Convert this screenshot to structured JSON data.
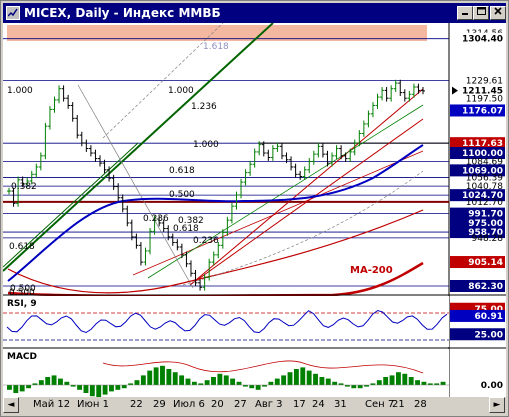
{
  "window": {
    "title": "MICEX, Daily - Индекс ММВБ",
    "icon": "chart-app-icon"
  },
  "chart_data": [
    {
      "type": "line",
      "panel": "price",
      "title": "",
      "series": [
        {
          "name": "",
          "values": [
            1032,
            1010,
            1052,
            1045,
            1050,
            1062,
            1075,
            1095,
            1148,
            1178,
            1195,
            1215,
            1198,
            1185,
            1162,
            1132,
            1118,
            1108,
            1100,
            1090,
            1082,
            1070,
            1055,
            1040,
            1020,
            1000,
            975,
            950,
            935,
            905,
            925,
            960,
            982,
            975,
            965,
            950,
            940,
            932,
            918,
            902,
            885,
            868,
            860,
            878,
            905,
            918,
            935,
            958,
            980,
            1005,
            1025,
            1048,
            1065,
            1080,
            1102,
            1115,
            1100,
            1092,
            1108,
            1112,
            1095,
            1088,
            1075,
            1062,
            1058,
            1070,
            1085,
            1098,
            1112,
            1098,
            1082,
            1095,
            1108,
            1095,
            1090,
            1102,
            1118,
            1135,
            1152,
            1170,
            1185,
            1200,
            1212,
            1198,
            1215,
            1225,
            1208,
            1198,
            1205,
            1218,
            1212,
            1211
          ]
        },
        {
          "name": "MA-200",
          "values": [
            840,
            840,
            841,
            842,
            843,
            844,
            845,
            846,
            847,
            848
          ]
        }
      ],
      "x_labels": [
        "Май 12",
        "Июн 1",
        "22",
        "29",
        "Июл 6",
        "20",
        "27",
        "Авг 3",
        "17",
        "24",
        "31",
        "Сен 7",
        "21",
        "28"
      ],
      "price_axis_labels": [
        "1314.56",
        "1304.40",
        "1229.61",
        "1211.45",
        "1197.50",
        "1176.07",
        "1117.63",
        "1100.00",
        "1084.69",
        "1069.00",
        "1056.39",
        "1040.78",
        "1024.70",
        "1012.70",
        "991.70",
        "975.00",
        "958.70",
        "948.28",
        "905.14",
        "862.30"
      ],
      "price_axis_highlights": [
        {
          "label": "1304.40",
          "bg": "#ffffff",
          "fg": "#000000"
        },
        {
          "label": "1211.45",
          "bg": "#ffffff",
          "fg": "#000000",
          "marker": "arrow-right-icon"
        },
        {
          "label": "1176.07",
          "bg": "#0000c0",
          "fg": "#ffffff"
        },
        {
          "label": "1117.63",
          "bg": "#c00000",
          "fg": "#ffffff"
        },
        {
          "label": "1100.00",
          "bg": "#000080",
          "fg": "#ffffff"
        },
        {
          "label": "1069.00",
          "bg": "#000080",
          "fg": "#ffffff"
        },
        {
          "label": "1024.70",
          "bg": "#000080",
          "fg": "#ffffff"
        },
        {
          "label": "991.70",
          "bg": "#000080",
          "fg": "#ffffff"
        },
        {
          "label": "975.00",
          "bg": "#000080",
          "fg": "#ffffff"
        },
        {
          "label": "958.70",
          "bg": "#000080",
          "fg": "#ffffff"
        },
        {
          "label": "905.14",
          "bg": "#c00000",
          "fg": "#ffffff"
        },
        {
          "label": "862.30",
          "bg": "#000080",
          "fg": "#ffffff"
        }
      ],
      "fib_labels": [
        "1.618",
        "1.000",
        "1.000",
        "1.236",
        "1.000",
        "0.618",
        "0.500",
        "0.382",
        "0.236",
        "0.618",
        "0.382",
        "0.500",
        "0.236",
        "0.618",
        "0.500"
      ],
      "annotations": [
        "MA-200"
      ],
      "colors": {
        "up": "#008000",
        "down": "#000000",
        "ma200": "#c00000",
        "ma_blue": "#0000c0",
        "fib": "#000080",
        "channel": "#006400",
        "band": "#f4b8a0"
      }
    },
    {
      "type": "line",
      "panel": "rsi",
      "title": "RSI, 9",
      "axis_labels": [
        "75.00",
        "60.91",
        "25.00"
      ],
      "levels": [
        75,
        25
      ],
      "current": 60.91,
      "colors": {
        "line": "#0000c0",
        "level75": "#c00000",
        "level25": "#000080",
        "current_bg": "#0000c0"
      }
    },
    {
      "type": "bar",
      "panel": "macd",
      "title": "MACD",
      "axis_labels": [
        "0.00"
      ],
      "histogram": [
        -3,
        -5,
        -4,
        -2,
        1,
        3,
        5,
        6,
        4,
        2,
        -1,
        -3,
        -5,
        -7,
        -8,
        -6,
        -4,
        -3,
        -2,
        1,
        3,
        6,
        9,
        11,
        12,
        10,
        8,
        6,
        4,
        2,
        1,
        3,
        5,
        7,
        6,
        4,
        2,
        -1,
        -2,
        -3,
        -1,
        2,
        4,
        6,
        8,
        10,
        11,
        9,
        7,
        5,
        4,
        2,
        1,
        -1,
        -2,
        -2,
        -1,
        1,
        3,
        5,
        6,
        8,
        7,
        5,
        3,
        2,
        1,
        1,
        2
      ],
      "colors": {
        "hist": "#008000"
      }
    }
  ],
  "scrollbar": {
    "left_arrow": "◄",
    "right_arrow": "►"
  }
}
